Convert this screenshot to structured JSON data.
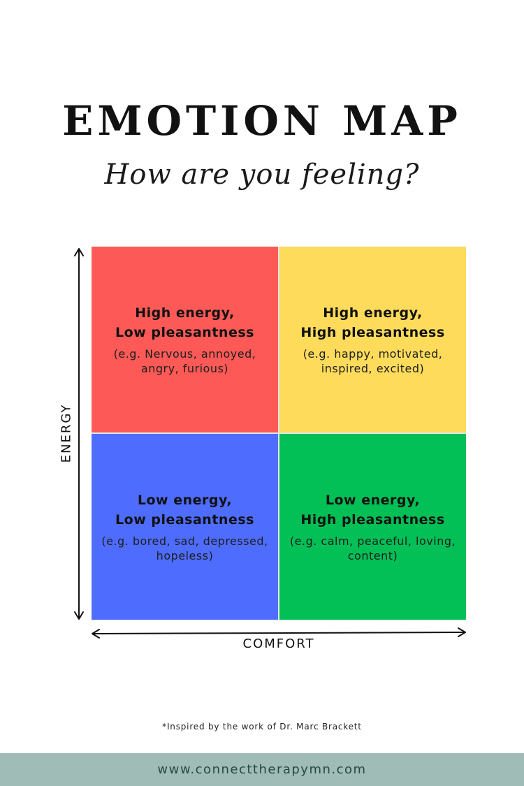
{
  "header": {
    "title": "EMOTION MAP",
    "subtitle": "How are you feeling?"
  },
  "axes": {
    "y_label": "ENERGY",
    "x_label": "COMFORT"
  },
  "quadrants": [
    {
      "heading": "High energy,\nLow pleasantness",
      "examples": "(e.g. Nervous, annoyed,\nangry, furious)",
      "color": "#fd5a57"
    },
    {
      "heading": "High energy,\nHigh pleasantness",
      "examples": "(e.g. happy, motivated,\ninspired, excited)",
      "color": "#fedb5b"
    },
    {
      "heading": "Low energy,\nLow pleasantness",
      "examples": "(e.g. bored, sad, depressed,\nhopeless)",
      "color": "#4e6cfd"
    },
    {
      "heading": "Low energy,\nHigh pleasantness",
      "examples": "(e.g. calm, peaceful, loving,\ncontent)",
      "color": "#02bf56"
    }
  ],
  "credit": "*Inspired by the work of Dr. Marc Brackett",
  "footer": {
    "url": "www.connecttherapymn.com",
    "color": "#9fbcb7"
  }
}
